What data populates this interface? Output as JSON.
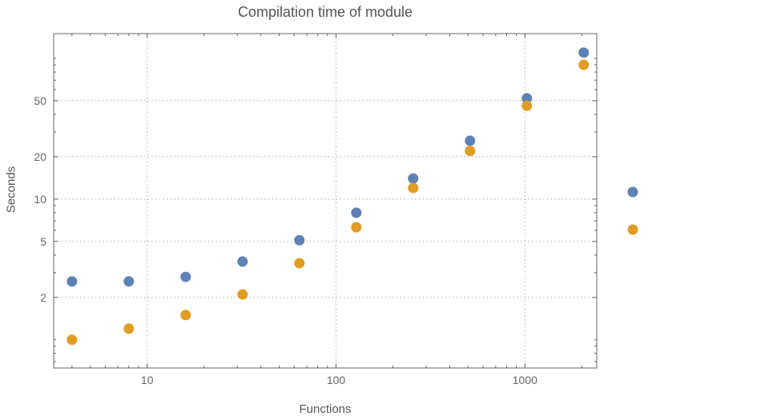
{
  "chart_data": {
    "type": "scatter",
    "title": "Compilation time of module",
    "xlabel": "Functions",
    "ylabel": "Seconds",
    "xscale": "log",
    "yscale": "log",
    "xlim": [
      3.2,
      2400
    ],
    "ylim": [
      0.63,
      150
    ],
    "xticks": [
      10,
      100,
      1000
    ],
    "yticks": [
      2,
      5,
      10,
      20,
      50
    ],
    "grid": true,
    "grid_style": "dotted",
    "x": [
      4,
      8,
      16,
      32,
      64,
      128,
      256,
      512,
      1024,
      2048
    ],
    "series": [
      {
        "name": "blue",
        "color": "#5e81b5",
        "marker": "circle",
        "values": [
          2.6,
          2.6,
          2.8,
          3.6,
          5.1,
          8.0,
          14,
          26,
          52,
          110
        ]
      },
      {
        "name": "orange",
        "color": "#e19c24",
        "marker": "circle",
        "values": [
          1.0,
          1.2,
          1.5,
          2.1,
          3.5,
          6.3,
          12,
          22,
          46,
          90
        ]
      }
    ],
    "legend": {
      "position": "right-of-frame",
      "entries": [
        {
          "series": "blue",
          "color": "#5e81b5",
          "label": ""
        },
        {
          "series": "orange",
          "color": "#e19c24",
          "label": ""
        }
      ]
    }
  },
  "colors": {
    "background": "#ffffff",
    "frame": "#646464",
    "grid": "#a9a9a9",
    "text": "#555555",
    "tick_text": "#666666"
  }
}
